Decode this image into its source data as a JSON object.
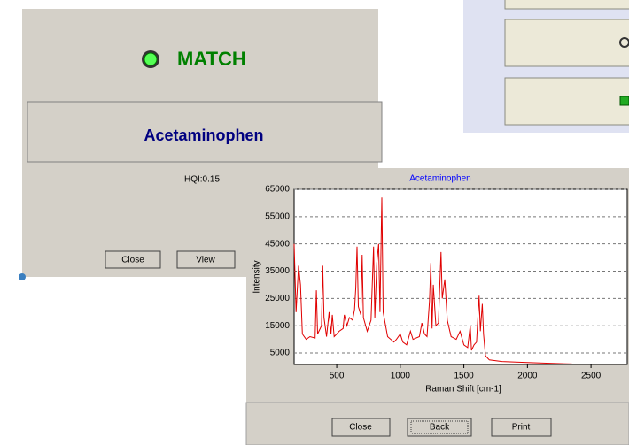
{
  "match_window": {
    "status": "MATCH",
    "compound": "Acetaminophen",
    "hqi": "HQI:0.15",
    "buttons": [
      "Close",
      "View"
    ]
  },
  "chart_window": {
    "buttons": [
      "Close",
      "Back",
      "Print"
    ]
  },
  "chart_data": {
    "type": "line",
    "title": "Acetaminophen",
    "x_label": "Raman Shift [cm-1]",
    "y_label": "Intensity",
    "x": [
      165,
      180,
      200,
      215,
      230,
      260,
      290,
      330,
      340,
      350,
      380,
      390,
      400,
      420,
      440,
      455,
      465,
      480,
      500,
      520,
      550,
      560,
      580,
      600,
      625,
      640,
      650,
      660,
      670,
      690,
      700,
      710,
      740,
      770,
      790,
      800,
      815,
      830,
      840,
      855,
      865,
      900,
      950,
      970,
      1000,
      1020,
      1050,
      1080,
      1100,
      1150,
      1170,
      1190,
      1210,
      1230,
      1240,
      1250,
      1260,
      1280,
      1300,
      1320,
      1330,
      1350,
      1370,
      1400,
      1440,
      1470,
      1500,
      1530,
      1550,
      1560,
      1580,
      1600,
      1610,
      1620,
      1630,
      1645,
      1655,
      1670,
      1700,
      1800,
      2000,
      2200,
      2350
    ],
    "series": [
      {
        "color": "#e00000",
        "values": [
          45000,
          20000,
          37000,
          30000,
          12000,
          10000,
          11000,
          10500,
          28000,
          12000,
          15000,
          37000,
          18000,
          11000,
          20000,
          12000,
          19000,
          11000,
          12000,
          13000,
          14000,
          19000,
          15000,
          18000,
          17000,
          21000,
          29000,
          44000,
          22000,
          19000,
          41000,
          18000,
          13000,
          17000,
          44000,
          18000,
          38000,
          45000,
          20000,
          62000,
          20000,
          11000,
          9000,
          10000,
          12000,
          9000,
          8000,
          13000,
          10000,
          11000,
          16000,
          12000,
          11000,
          24000,
          38000,
          14000,
          30000,
          15000,
          16000,
          42000,
          25000,
          32000,
          17000,
          11000,
          10000,
          13000,
          8000,
          7000,
          15000,
          6000,
          8000,
          9000,
          18000,
          26000,
          13000,
          23000,
          12000,
          4000,
          2500,
          1900,
          1500,
          1200,
          1000
        ]
      }
    ],
    "xlim": [
      165,
      2785
    ],
    "ylim": [
      800,
      65000
    ],
    "xticks": [
      500,
      1000,
      1500,
      2000,
      2500
    ],
    "yticks": [
      5000,
      15000,
      25000,
      35000,
      45000,
      55000,
      65000
    ],
    "grid": true
  }
}
